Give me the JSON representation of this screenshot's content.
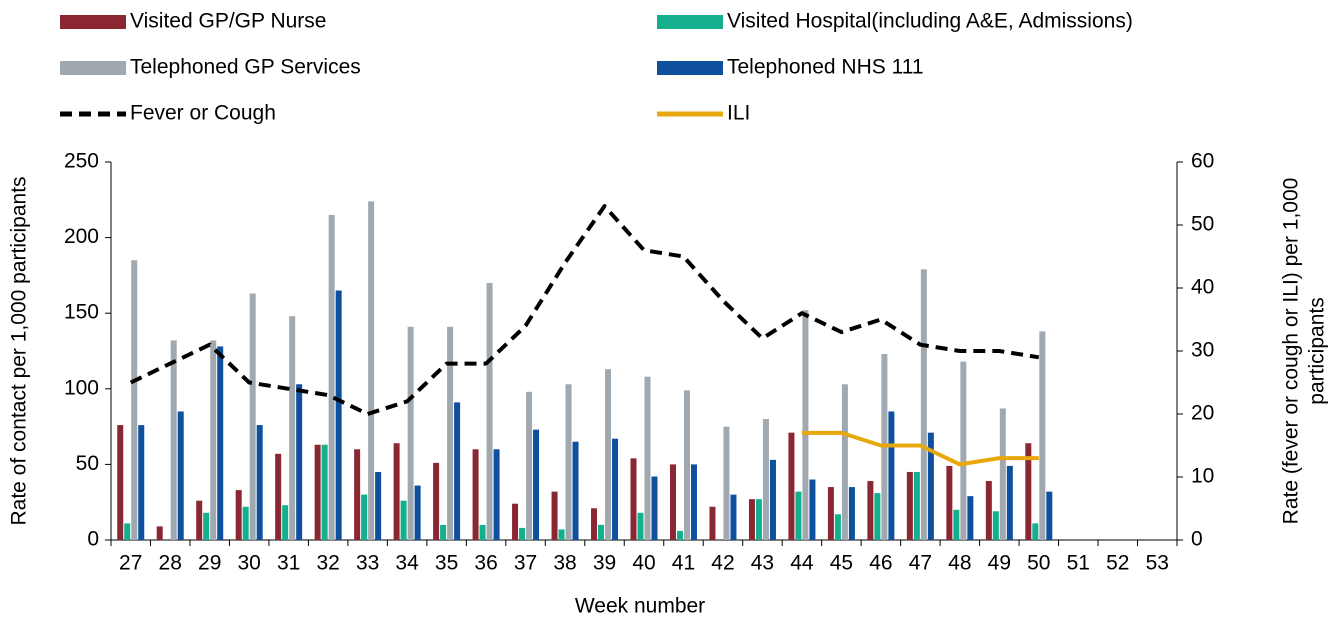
{
  "chart_data": {
    "type": "bar-line",
    "xlabel": "Week number",
    "ylabel": "Rate of contact per 1,000 participants",
    "y2label": [
      "Rate (fever or cough or ILI) per 1,000",
      "participants"
    ],
    "categories": [
      "27",
      "28",
      "29",
      "30",
      "31",
      "32",
      "33",
      "34",
      "35",
      "36",
      "37",
      "38",
      "39",
      "40",
      "41",
      "42",
      "43",
      "44",
      "45",
      "46",
      "47",
      "48",
      "49",
      "50",
      "51",
      "52",
      "53"
    ],
    "ylim": [
      0,
      250
    ],
    "yticks": [
      0,
      50,
      100,
      150,
      200,
      250
    ],
    "y2lim": [
      0,
      60
    ],
    "y2ticks": [
      0,
      10,
      20,
      30,
      40,
      50,
      60
    ],
    "series": [
      {
        "name": "Visited GP/GP Nurse",
        "kind": "bar",
        "color": "#8b2633",
        "values": [
          76,
          9,
          26,
          33,
          57,
          63,
          60,
          64,
          51,
          60,
          24,
          32,
          21,
          54,
          50,
          22,
          27,
          71,
          35,
          39,
          45,
          49,
          39,
          64,
          null,
          null,
          null
        ]
      },
      {
        "name": "Visited Hospital(including A&E, Admissions)",
        "kind": "bar",
        "color": "#14b08e",
        "values": [
          11,
          0,
          18,
          22,
          23,
          63,
          30,
          26,
          10,
          10,
          8,
          7,
          10,
          18,
          6,
          0,
          27,
          32,
          17,
          31,
          45,
          20,
          19,
          11,
          null,
          null,
          null
        ]
      },
      {
        "name": "Telephoned GP Services",
        "kind": "bar",
        "color": "#a0a9b0",
        "values": [
          185,
          132,
          132,
          163,
          148,
          215,
          224,
          141,
          141,
          170,
          98,
          103,
          113,
          108,
          99,
          75,
          80,
          152,
          103,
          123,
          179,
          118,
          87,
          138,
          null,
          null,
          null
        ]
      },
      {
        "name": "Telephoned NHS 111",
        "kind": "bar",
        "color": "#0e4f9e",
        "values": [
          76,
          85,
          128,
          76,
          103,
          165,
          45,
          36,
          91,
          60,
          73,
          65,
          67,
          42,
          50,
          30,
          53,
          40,
          35,
          85,
          71,
          29,
          49,
          32,
          null,
          null,
          null
        ]
      },
      {
        "name": "Fever or Cough",
        "kind": "line",
        "axis": "y2",
        "color": "#000000",
        "dashed": true,
        "values": [
          25,
          28,
          31,
          25,
          24,
          23,
          20,
          22,
          28,
          28,
          34,
          44,
          53,
          46,
          45,
          38,
          32,
          36,
          33,
          35,
          31,
          30,
          30,
          29,
          null,
          null,
          null
        ]
      },
      {
        "name": "ILI",
        "kind": "line",
        "axis": "y2",
        "color": "#e8a80c",
        "dashed": false,
        "values": [
          null,
          null,
          null,
          null,
          null,
          null,
          null,
          null,
          null,
          null,
          null,
          null,
          null,
          null,
          null,
          null,
          null,
          17,
          17,
          15,
          15,
          12,
          13,
          13,
          null,
          null,
          null
        ]
      }
    ]
  }
}
